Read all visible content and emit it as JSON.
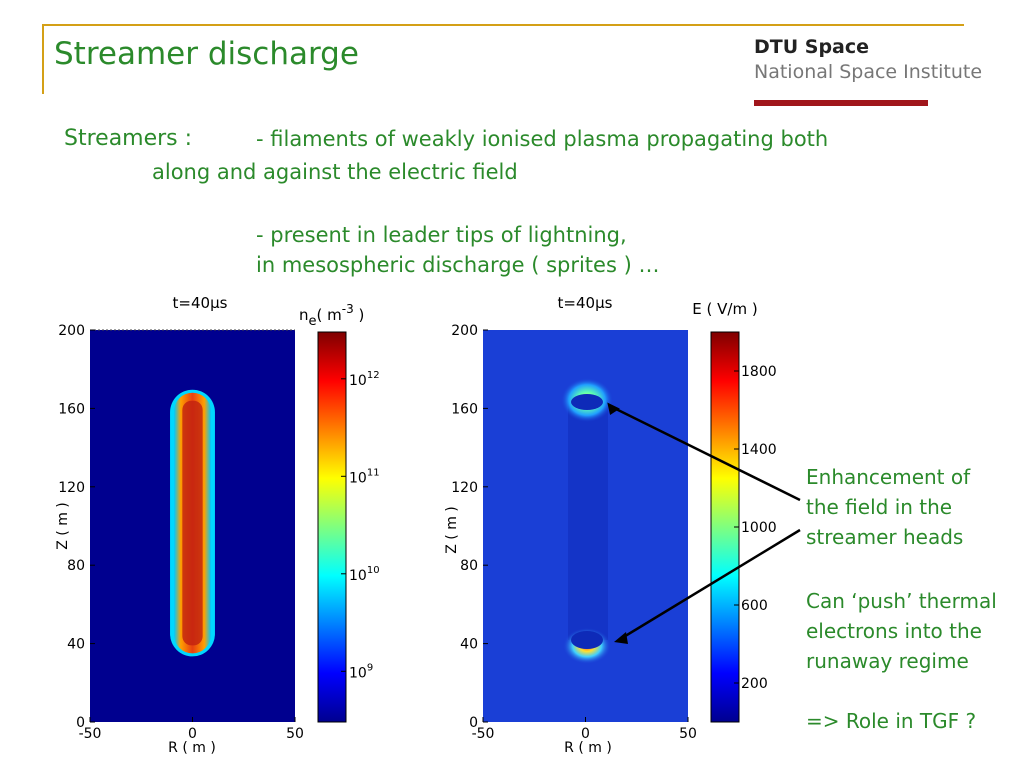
{
  "slide": {
    "title": "Streamer discharge",
    "logo_line1": "DTU Space",
    "logo_line2": "National Space Institute",
    "bullets": {
      "label": "Streamers :",
      "line1": "- filaments of weakly ionised plasma propagating both",
      "line2": "along and against the electric field",
      "line3": "- present in leader tips of lightning,",
      "line4": "in mesospheric discharge ( sprites ) …"
    },
    "notes": {
      "enhancement": [
        "Enhancement of",
        "the field in the",
        "streamer heads"
      ],
      "push": [
        "Can ‘push’ thermal",
        "electrons into the",
        "runaway regime"
      ],
      "role": "=> Role in TGF ?"
    }
  },
  "chart_data": [
    {
      "type": "heatmap",
      "title": "t=40µs",
      "xlabel": "R ( m )",
      "ylabel": "Z ( m )",
      "x_ticks": [
        "-50",
        "0",
        "50"
      ],
      "y_ticks": [
        "0",
        "40",
        "80",
        "120",
        "160",
        "200"
      ],
      "xlim": [
        -50,
        50
      ],
      "ylim": [
        0,
        200
      ],
      "colorbar_label": "n_e( m^-3 )",
      "colorbar_label_base": "n",
      "colorbar_label_sub": "e",
      "colorbar_label_paren": "( m",
      "colorbar_label_sup": "-3",
      "colorbar_label_close": " )",
      "colorbar_ticks": [
        "10^12",
        "10^11",
        "10^10",
        "10^9"
      ],
      "colorbar_tick_base": "10",
      "colorbar_tick_exps": [
        "12",
        "11",
        "10",
        "9"
      ],
      "colorbar_tick_fractions": [
        0.12,
        0.37,
        0.62,
        0.87
      ],
      "colormap": "jet",
      "streamer_z_range": [
        35,
        168
      ],
      "streamer_halfwidth": 9
    },
    {
      "type": "heatmap",
      "title": "t=40µs",
      "xlabel": "R ( m )",
      "ylabel": "Z ( m )",
      "x_ticks": [
        "-50",
        "0",
        "50"
      ],
      "y_ticks": [
        "0",
        "40",
        "80",
        "120",
        "160",
        "200"
      ],
      "xlim": [
        -50,
        50
      ],
      "ylim": [
        0,
        200
      ],
      "colorbar_label": "E ( V/m )",
      "colorbar_ticks": [
        "1800",
        "1400",
        "1000",
        "600",
        "200"
      ],
      "colorbar_range": [
        0,
        2000
      ],
      "colormap": "jet",
      "field_enhancement_z": [
        168,
        38
      ]
    }
  ],
  "colors": {
    "title_green": "#2b8a2b",
    "frame_gold": "#d4a017",
    "logo_red": "#a0161b",
    "jet_blue": "#1a3fd6"
  }
}
